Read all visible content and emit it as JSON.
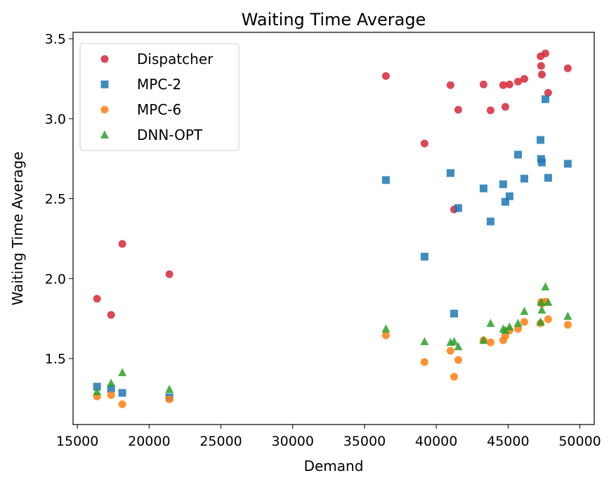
{
  "chart_data": {
    "type": "scatter",
    "title": "Waiting Time Average",
    "xlabel": "Demand",
    "ylabel": "Waiting Time Average",
    "xlim": [
      14700,
      51000
    ],
    "ylim": [
      1.087,
      3.54
    ],
    "xticks": [
      15000,
      20000,
      25000,
      30000,
      35000,
      40000,
      45000,
      50000
    ],
    "yticks": [
      1.5,
      2.0,
      2.5,
      3.0,
      3.5
    ],
    "xtick_labels": [
      "15000",
      "20000",
      "25000",
      "30000",
      "35000",
      "40000",
      "45000",
      "50000"
    ],
    "ytick_labels": [
      "1.5",
      "2.0",
      "2.5",
      "3.0",
      "3.5"
    ],
    "grid": false,
    "legend_position": "top-left",
    "x": [
      16370,
      17350,
      18130,
      21410,
      36490,
      39180,
      40990,
      41240,
      41530,
      43290,
      43780,
      44660,
      44810,
      45100,
      45690,
      46130,
      47260,
      47300,
      47350,
      47600,
      47790,
      49160
    ],
    "series": [
      {
        "name": "Dispatcher",
        "marker": "circle",
        "color": "#d62738",
        "values": [
          1.874,
          1.773,
          2.217,
          2.027,
          3.267,
          2.845,
          3.21,
          2.432,
          3.056,
          3.214,
          3.052,
          3.21,
          3.074,
          3.214,
          3.232,
          3.249,
          3.39,
          3.33,
          3.276,
          3.408,
          3.162,
          3.315
        ]
      },
      {
        "name": "MPC-2",
        "marker": "square",
        "color": "#1f77b4",
        "values": [
          1.324,
          1.311,
          1.285,
          1.258,
          2.616,
          2.137,
          2.66,
          1.781,
          2.441,
          2.564,
          2.357,
          2.59,
          2.48,
          2.515,
          2.775,
          2.625,
          2.867,
          2.748,
          2.726,
          3.122,
          2.63,
          2.718
        ]
      },
      {
        "name": "MPC-6",
        "marker": "circle",
        "color": "#ff7f0e",
        "values": [
          1.263,
          1.271,
          1.214,
          1.245,
          1.645,
          1.478,
          1.548,
          1.386,
          1.491,
          1.614,
          1.601,
          1.614,
          1.641,
          1.676,
          1.685,
          1.729,
          1.72,
          1.852,
          1.843,
          1.856,
          1.746,
          1.711
        ]
      },
      {
        "name": "DNN-OPT",
        "marker": "triangle",
        "color": "#2ca02c",
        "values": [
          1.293,
          1.346,
          1.412,
          1.307,
          1.685,
          1.606,
          1.601,
          1.606,
          1.574,
          1.614,
          1.72,
          1.685,
          1.676,
          1.698,
          1.72,
          1.795,
          1.729,
          1.852,
          1.803,
          1.948,
          1.852,
          1.764
        ]
      }
    ]
  }
}
